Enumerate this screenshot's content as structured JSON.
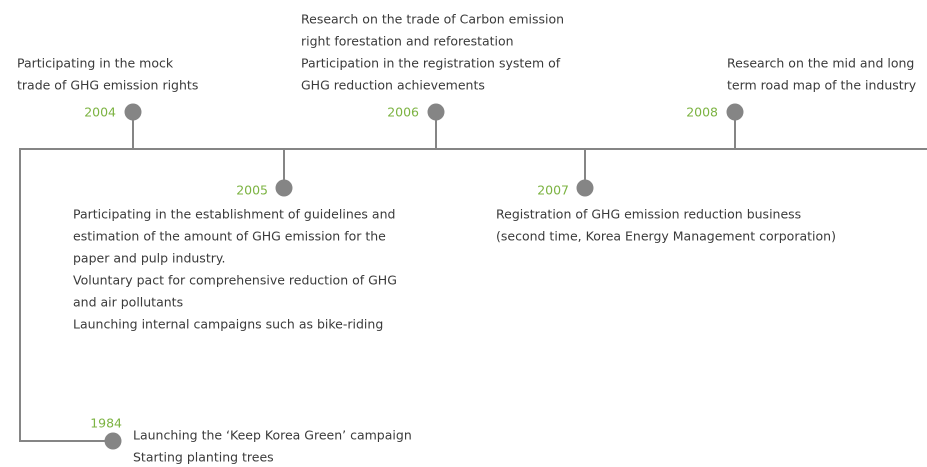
{
  "events": [
    {
      "year": "2004",
      "lines": [
        "Participating in the mock",
        "trade of GHG emission rights"
      ]
    },
    {
      "year": "2005",
      "lines": [
        "Participating in the establishment of guidelines and",
        "estimation of the amount of GHG emission for the",
        "paper and pulp industry.",
        "Voluntary pact for comprehensive reduction of GHG",
        "and air pollutants",
        "Launching internal campaigns such as bike-riding"
      ]
    },
    {
      "year": "2006",
      "lines": [
        "Research on the trade of Carbon emission",
        "right forestation and reforestation",
        "Participation in the registration system of",
        "GHG reduction achievements"
      ]
    },
    {
      "year": "2007",
      "lines": [
        "Registration of GHG emission reduction business",
        "(second time, Korea Energy Management corporation)"
      ]
    },
    {
      "year": "2008",
      "lines": [
        "Research on the mid and long",
        "term road map of the industry"
      ]
    },
    {
      "year": "1984",
      "lines": [
        "Launching the ‘Keep Korea Green’ campaign",
        "Starting planting trees"
      ]
    }
  ]
}
